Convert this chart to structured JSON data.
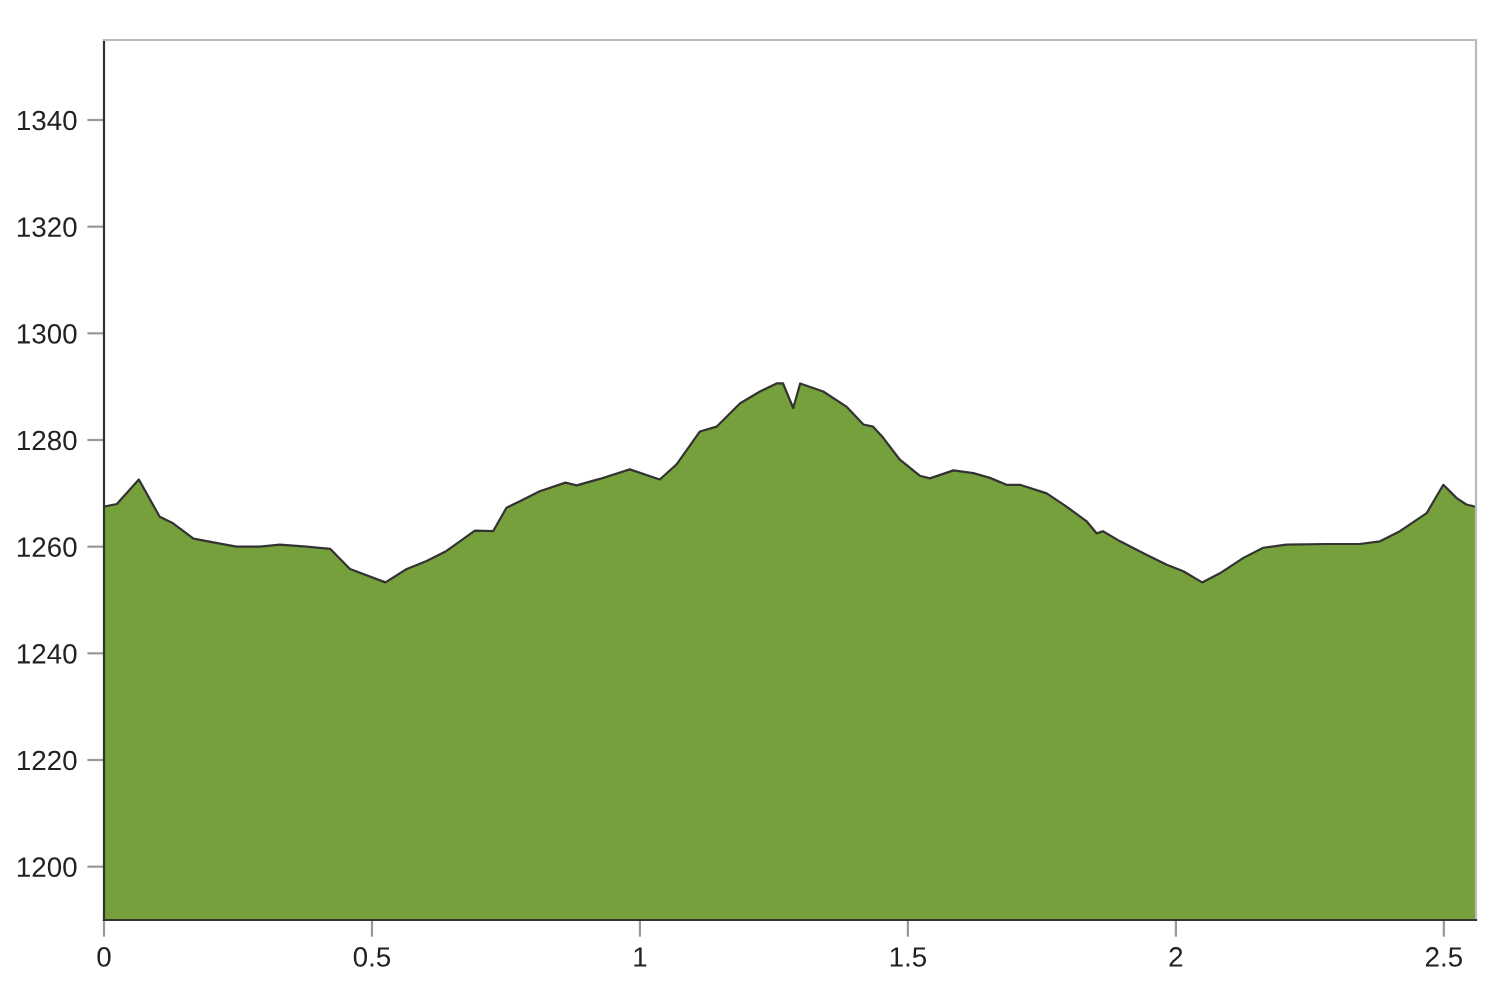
{
  "chart_data": {
    "type": "area",
    "color": "#76a03c",
    "grid": false,
    "x": [
      0,
      0.024,
      0.065,
      0.104,
      0.127,
      0.167,
      0.204,
      0.247,
      0.291,
      0.328,
      0.378,
      0.422,
      0.459,
      0.525,
      0.565,
      0.602,
      0.639,
      0.664,
      0.692,
      0.726,
      0.751,
      0.776,
      0.813,
      0.861,
      0.882,
      0.925,
      0.981,
      1.037,
      1.068,
      1.112,
      1.143,
      1.187,
      1.224,
      1.255,
      1.267,
      1.286,
      1.299,
      1.342,
      1.386,
      1.417,
      1.435,
      1.454,
      1.485,
      1.522,
      1.541,
      1.585,
      1.622,
      1.653,
      1.684,
      1.709,
      1.759,
      1.796,
      1.833,
      1.852,
      1.864,
      1.896,
      1.945,
      1.983,
      2.014,
      2.049,
      2.082,
      2.126,
      2.163,
      2.206,
      2.281,
      2.343,
      2.381,
      2.418,
      2.468,
      2.499,
      2.524,
      2.542,
      2.559
    ],
    "values": [
      1267.5,
      1268,
      1272.6,
      1265.6,
      1264.5,
      1261.5,
      1260.8,
      1260,
      1260,
      1260.4,
      1260,
      1259.6,
      1255.8,
      1253.3,
      1255.8,
      1257.3,
      1259.2,
      1261,
      1263,
      1262.9,
      1267.3,
      1268.5,
      1270.4,
      1272,
      1271.5,
      1272.7,
      1274.5,
      1272.6,
      1275.4,
      1281.6,
      1282.5,
      1286.9,
      1289.1,
      1290.6,
      1290.6,
      1286,
      1290.6,
      1289.1,
      1286.2,
      1282.9,
      1282.5,
      1280.4,
      1276.3,
      1273.3,
      1272.8,
      1274.3,
      1273.8,
      1272.9,
      1271.6,
      1271.6,
      1270,
      1267.5,
      1264.8,
      1262.5,
      1262.9,
      1261,
      1258.5,
      1256.6,
      1255.4,
      1253.3,
      1255,
      1257.9,
      1259.8,
      1260.4,
      1260.5,
      1260.5,
      1261,
      1262.9,
      1266.3,
      1271.6,
      1269.1,
      1267.9,
      1267.5
    ],
    "xlim": [
      0,
      2.56
    ],
    "ylim": [
      1190,
      1355
    ],
    "xticks": [
      0,
      0.5,
      1,
      1.5,
      2,
      2.5
    ],
    "yticks": [
      1200,
      1220,
      1240,
      1260,
      1280,
      1300,
      1320,
      1340
    ]
  }
}
